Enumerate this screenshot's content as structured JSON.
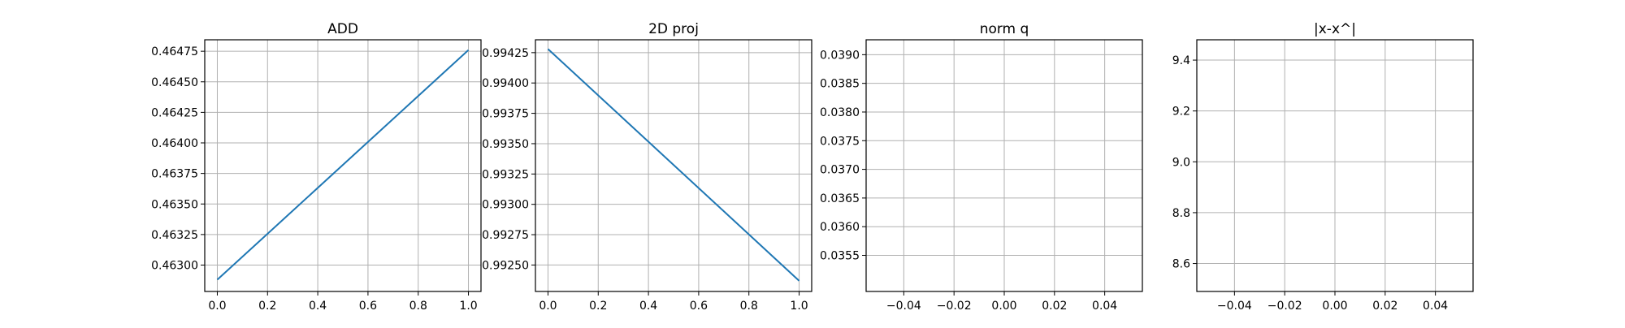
{
  "figure": {
    "line_color": "#1f77b4",
    "grid_color": "#b0b0b0",
    "axis_color": "#000000",
    "background": "#ffffff"
  },
  "chart_data": [
    {
      "type": "line",
      "title": "ADD",
      "xlabel": "",
      "ylabel": "",
      "grid": true,
      "xlim": [
        -0.05,
        1.05
      ],
      "ylim": [
        0.462784,
        0.464844
      ],
      "xticks": [
        0.0,
        0.2,
        0.4,
        0.6,
        0.8,
        1.0
      ],
      "xtick_labels": [
        "0.0",
        "0.2",
        "0.4",
        "0.6",
        "0.8",
        "1.0"
      ],
      "yticks": [
        0.463,
        0.46325,
        0.4635,
        0.46375,
        0.464,
        0.46425,
        0.4645,
        0.46475
      ],
      "ytick_labels": [
        "0.46300",
        "0.46325",
        "0.46350",
        "0.46375",
        "0.46400",
        "0.46425",
        "0.46450",
        "0.46475"
      ],
      "series": [
        {
          "x": [
            0,
            1
          ],
          "y": [
            0.46288,
            0.46476
          ]
        }
      ]
    },
    {
      "type": "line",
      "title": "2D proj",
      "xlabel": "",
      "ylabel": "",
      "grid": true,
      "xlim": [
        -0.05,
        1.05
      ],
      "ylim": [
        0.992282,
        0.994356
      ],
      "xticks": [
        0.0,
        0.2,
        0.4,
        0.6,
        0.8,
        1.0
      ],
      "xtick_labels": [
        "0.0",
        "0.2",
        "0.4",
        "0.6",
        "0.8",
        "1.0"
      ],
      "yticks": [
        0.9925,
        0.99275,
        0.993,
        0.99325,
        0.9935,
        0.99375,
        0.994,
        0.99425
      ],
      "ytick_labels": [
        "0.99250",
        "0.99275",
        "0.99300",
        "0.99325",
        "0.99350",
        "0.99375",
        "0.99400",
        "0.99425"
      ],
      "series": [
        {
          "x": [
            0,
            1
          ],
          "y": [
            0.99428,
            0.99237
          ]
        }
      ]
    },
    {
      "type": "line",
      "title": "norm q",
      "xlabel": "",
      "ylabel": "",
      "grid": true,
      "xlim": [
        -0.055,
        0.055
      ],
      "ylim": [
        0.03487,
        0.03926
      ],
      "xticks": [
        -0.04,
        -0.02,
        0.0,
        0.02,
        0.04
      ],
      "xtick_labels": [
        "−0.04",
        "−0.02",
        "0.00",
        "0.02",
        "0.04"
      ],
      "yticks": [
        0.0355,
        0.036,
        0.0365,
        0.037,
        0.0375,
        0.038,
        0.0385,
        0.039
      ],
      "ytick_labels": [
        "0.0355",
        "0.0360",
        "0.0365",
        "0.0370",
        "0.0375",
        "0.0380",
        "0.0385",
        "0.0390"
      ],
      "series": []
    },
    {
      "type": "line",
      "title": "|x-x^|",
      "xlabel": "",
      "ylabel": "",
      "grid": true,
      "xlim": [
        -0.055,
        0.055
      ],
      "ylim": [
        8.49,
        9.48
      ],
      "xticks": [
        -0.04,
        -0.02,
        0.0,
        0.02,
        0.04
      ],
      "xtick_labels": [
        "−0.04",
        "−0.02",
        "0.00",
        "0.02",
        "0.04"
      ],
      "yticks": [
        8.6,
        8.8,
        9.0,
        9.2,
        9.4
      ],
      "ytick_labels": [
        "8.6",
        "8.8",
        "9.0",
        "9.2",
        "9.4"
      ],
      "series": []
    }
  ]
}
